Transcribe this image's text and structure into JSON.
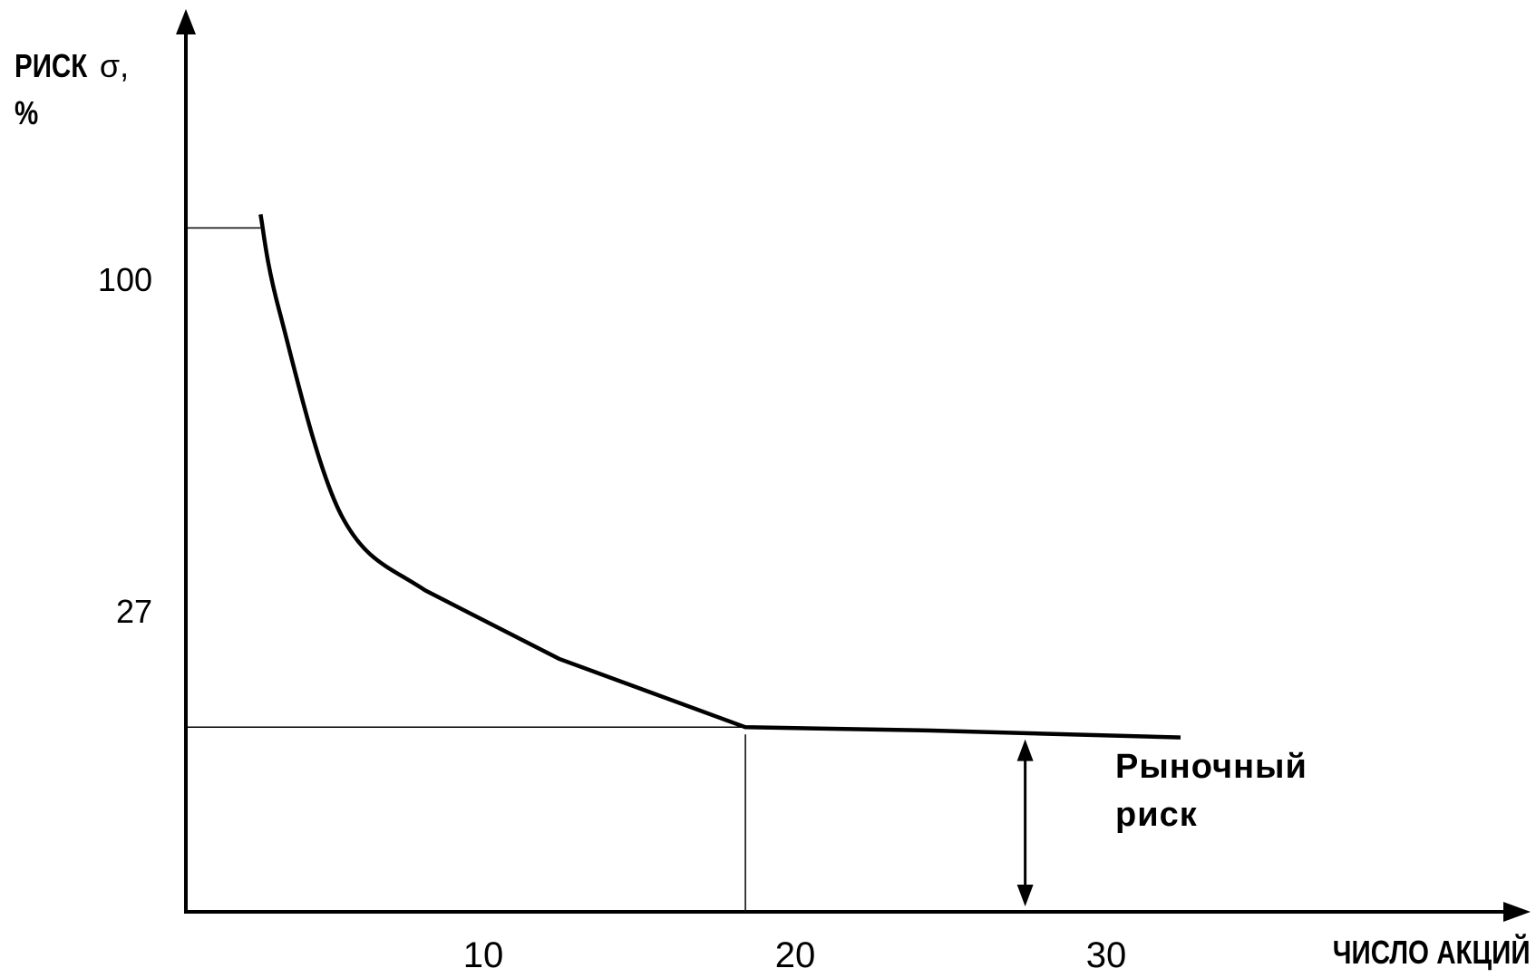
{
  "chart_data": {
    "type": "line",
    "ylabel_main": "РИСК",
    "ylabel_symbol": "σ,",
    "ylabel_unit": "%",
    "xlabel": "ЧИСЛО АКЦИЙ",
    "x_ticks": [
      "10",
      "20",
      "30"
    ],
    "y_ticks": [
      "100",
      "27"
    ],
    "x": [
      2.4,
      3,
      5,
      7.7,
      12,
      18,
      24,
      32
    ],
    "y": [
      102,
      88,
      58,
      47,
      37,
      27,
      26.5,
      25.5
    ],
    "xlim": [
      0,
      42.5
    ],
    "ylim": [
      0,
      132
    ],
    "reference_lines": {
      "y": 27,
      "x": 18,
      "y_top": 100
    },
    "annotation": {
      "line1": "Рыночный",
      "line2": "риск",
      "x": 27,
      "y_from": 0,
      "y_to": 25.5
    }
  }
}
